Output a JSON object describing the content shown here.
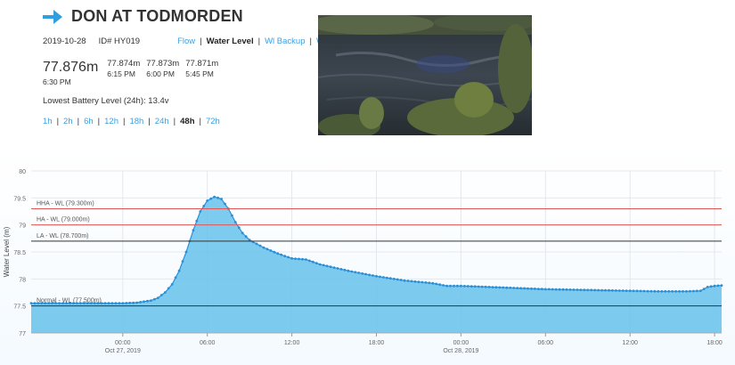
{
  "header": {
    "title": "DON AT TODMORDEN",
    "arrow_icon": "arrow-right-icon",
    "accent": "#2f9fe0"
  },
  "meta": {
    "date": "2019-10-28",
    "id": "ID# HY019",
    "nav": [
      {
        "label": "Flow",
        "active": false
      },
      {
        "label": "Water Level",
        "active": true
      },
      {
        "label": "Wl Backup",
        "active": false
      },
      {
        "label": "Wt",
        "active": false
      }
    ]
  },
  "readings": {
    "current": {
      "value": "77.876m",
      "time": "6:30 PM"
    },
    "previous": [
      {
        "value": "77.874m",
        "time": "6:15 PM"
      },
      {
        "value": "77.873m",
        "time": "6:00 PM"
      },
      {
        "value": "77.871m",
        "time": "5:45 PM"
      }
    ]
  },
  "battery": "Lowest Battery Level (24h): 13.4v",
  "ranges": [
    {
      "label": "1h",
      "active": false
    },
    {
      "label": "2h",
      "active": false
    },
    {
      "label": "6h",
      "active": false
    },
    {
      "label": "12h",
      "active": false
    },
    {
      "label": "18h",
      "active": false
    },
    {
      "label": "24h",
      "active": false
    },
    {
      "label": "48h",
      "active": true
    },
    {
      "label": "72h",
      "active": false
    }
  ],
  "chart_data": {
    "type": "area",
    "ylabel": "Water Level (m)",
    "ylim": [
      77,
      80
    ],
    "yticks": [
      "77",
      "77.5",
      "78",
      "78.5",
      "79",
      "79.5",
      "80"
    ],
    "xlim_hours": [
      -6.5,
      42.5
    ],
    "xticks": [
      {
        "hour": 0,
        "time": "00:00",
        "date": "Oct 27, 2019"
      },
      {
        "hour": 6,
        "time": "06:00",
        "date": ""
      },
      {
        "hour": 12,
        "time": "12:00",
        "date": ""
      },
      {
        "hour": 18,
        "time": "18:00",
        "date": ""
      },
      {
        "hour": 24,
        "time": "00:00",
        "date": "Oct 28, 2019"
      },
      {
        "hour": 30,
        "time": "06:00",
        "date": ""
      },
      {
        "hour": 36,
        "time": "12:00",
        "date": ""
      },
      {
        "hour": 42,
        "time": "18:00",
        "date": ""
      }
    ],
    "grid": true,
    "thresholds": [
      {
        "label": "HHA - WL (79.300m)",
        "value": 79.3,
        "color": "#e05656"
      },
      {
        "label": "HA - WL (79.000m)",
        "value": 79.0,
        "color": "#e05656"
      },
      {
        "label": "LA - WL (78.700m)",
        "value": 78.7,
        "color": "#333333"
      },
      {
        "label": "Normal - WL (77.500m)",
        "value": 77.5,
        "color": "#333333"
      }
    ],
    "series": [
      {
        "color": "#66c2ec",
        "points": [
          [
            -6.5,
            77.55
          ],
          [
            -4,
            77.55
          ],
          [
            -2,
            77.55
          ],
          [
            0,
            77.55
          ],
          [
            1,
            77.56
          ],
          [
            2,
            77.6
          ],
          [
            2.5,
            77.65
          ],
          [
            3,
            77.75
          ],
          [
            3.5,
            77.9
          ],
          [
            4,
            78.15
          ],
          [
            4.5,
            78.5
          ],
          [
            5,
            78.9
          ],
          [
            5.5,
            79.25
          ],
          [
            6,
            79.45
          ],
          [
            6.5,
            79.52
          ],
          [
            7,
            79.48
          ],
          [
            7.5,
            79.3
          ],
          [
            8,
            79.05
          ],
          [
            8.5,
            78.85
          ],
          [
            9,
            78.72
          ],
          [
            10,
            78.58
          ],
          [
            11,
            78.47
          ],
          [
            12,
            78.38
          ],
          [
            13,
            78.36
          ],
          [
            14,
            78.27
          ],
          [
            16,
            78.15
          ],
          [
            18,
            78.05
          ],
          [
            20,
            77.97
          ],
          [
            22,
            77.92
          ],
          [
            23,
            77.87
          ],
          [
            24,
            77.87
          ],
          [
            26,
            77.85
          ],
          [
            28,
            77.83
          ],
          [
            30,
            77.81
          ],
          [
            32,
            77.8
          ],
          [
            34,
            77.79
          ],
          [
            36,
            77.78
          ],
          [
            38,
            77.77
          ],
          [
            40,
            77.77
          ],
          [
            41,
            77.78
          ],
          [
            41.5,
            77.85
          ],
          [
            42,
            77.87
          ],
          [
            42.5,
            77.88
          ]
        ]
      }
    ]
  }
}
